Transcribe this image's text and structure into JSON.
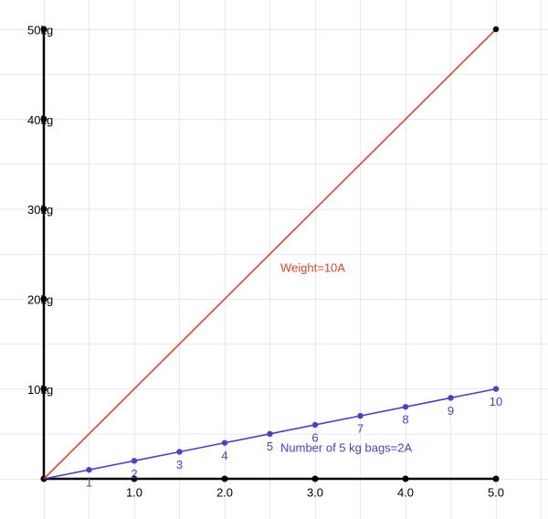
{
  "chart_data": {
    "type": "line",
    "xlim": [
      0,
      5
    ],
    "ylim": [
      0,
      50
    ],
    "xticks": [
      {
        "value": 1,
        "label": "1.0"
      },
      {
        "value": 2,
        "label": "2.0"
      },
      {
        "value": 3,
        "label": "3.0"
      },
      {
        "value": 4,
        "label": "4.0"
      },
      {
        "value": 5,
        "label": "5.0"
      }
    ],
    "yticks": [
      {
        "value": 10,
        "label": "10kg"
      },
      {
        "value": 20,
        "label": "20kg"
      },
      {
        "value": 30,
        "label": "30kg"
      },
      {
        "value": 40,
        "label": "40kg"
      },
      {
        "value": 50,
        "label": "50kg"
      }
    ],
    "series": [
      {
        "name": "Weight=10A",
        "color": "#e0452c",
        "x": [
          0,
          5
        ],
        "values": [
          0,
          50
        ]
      },
      {
        "name": "Number of 5 kg bags=2A",
        "color": "#4b3fd0",
        "x": [
          0,
          0.5,
          1,
          1.5,
          2,
          2.5,
          3,
          3.5,
          4,
          4.5,
          5
        ],
        "values": [
          0,
          1,
          2,
          3,
          4,
          5,
          6,
          7,
          8,
          9,
          10
        ]
      }
    ]
  }
}
